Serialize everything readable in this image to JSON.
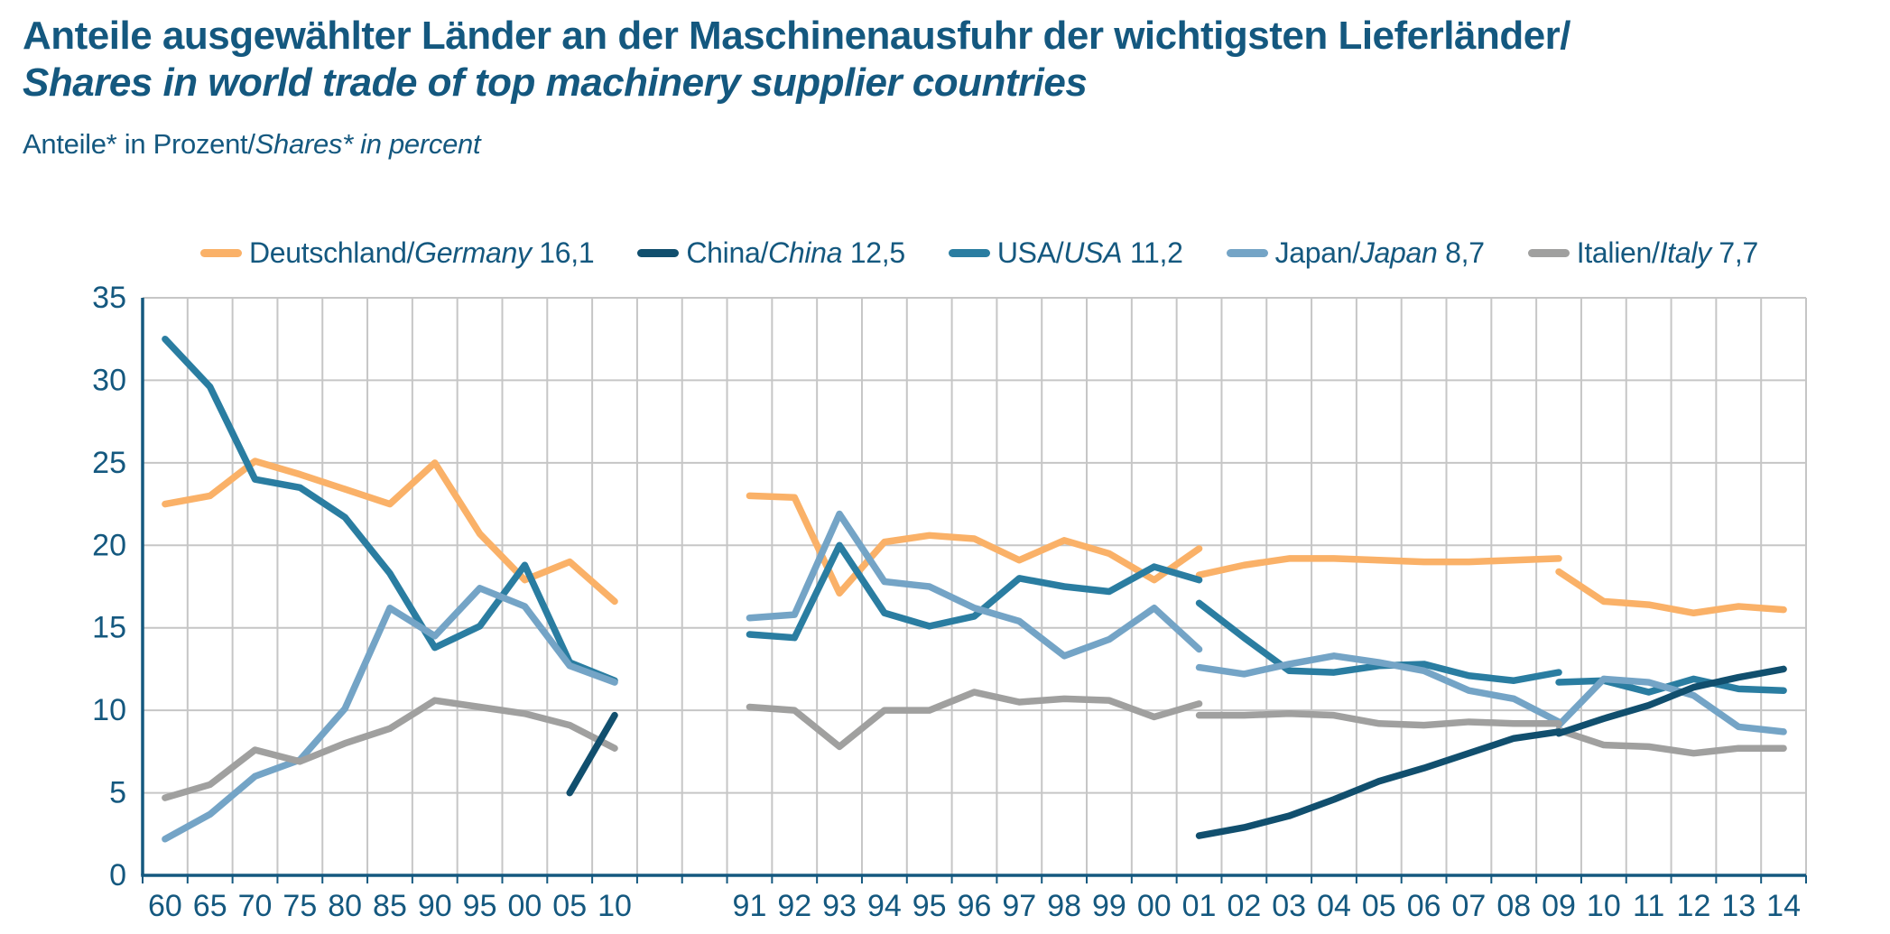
{
  "title": {
    "de": "Anteile ausgewählter Länder an der Maschinenausfuhr der wichtigsten Lieferländer/",
    "en": "Shares in world trade of top machinery supplier countries"
  },
  "subtitle": {
    "de": "Anteile* in Prozent/",
    "en": "Shares* in percent"
  },
  "colors": {
    "text_blue": "#14587F",
    "axis_blue": "#14587F",
    "gridline_gray": "#C6C6C6",
    "germany": "#FAB168",
    "china": "#114F6E",
    "usa": "#2A7DA1",
    "japan": "#74A4C6",
    "italy": "#A0A09F"
  },
  "chart_data": {
    "type": "line",
    "title": "Anteile ausgewählter Länder an der Maschinenausfuhr der wichtigsten Lieferländer / Shares in world trade of top machinery supplier countries",
    "ylabel": "Anteile* in Prozent / Shares* in percent",
    "ylim": [
      0,
      35
    ],
    "ytick_step": 5,
    "grid": "on",
    "legend_position": "top",
    "note": "Two x-axis sections: 5-year steps 1960-2010, then annual 1991-2014; series have statistical breaks (dual values) at 2001 and 2009",
    "y_ticks": [
      "0",
      "5",
      "10",
      "15",
      "20",
      "25",
      "30",
      "35"
    ],
    "x_ticks": [
      {
        "t": "60",
        "i": 0
      },
      {
        "t": "65",
        "i": 1
      },
      {
        "t": "70",
        "i": 2
      },
      {
        "t": "75",
        "i": 3
      },
      {
        "t": "80",
        "i": 4
      },
      {
        "t": "85",
        "i": 5
      },
      {
        "t": "90",
        "i": 6
      },
      {
        "t": "95",
        "i": 7
      },
      {
        "t": "00",
        "i": 8
      },
      {
        "t": "05",
        "i": 9
      },
      {
        "t": "10",
        "i": 10
      },
      {
        "t": "91",
        "i": 13
      },
      {
        "t": "92",
        "i": 14
      },
      {
        "t": "93",
        "i": 15
      },
      {
        "t": "94",
        "i": 16
      },
      {
        "t": "95",
        "i": 17
      },
      {
        "t": "96",
        "i": 18
      },
      {
        "t": "97",
        "i": 19
      },
      {
        "t": "98",
        "i": 20
      },
      {
        "t": "99",
        "i": 21
      },
      {
        "t": "00",
        "i": 22
      },
      {
        "t": "01",
        "i": 23
      },
      {
        "t": "02",
        "i": 24
      },
      {
        "t": "03",
        "i": 25
      },
      {
        "t": "04",
        "i": 26
      },
      {
        "t": "05",
        "i": 27
      },
      {
        "t": "06",
        "i": 28
      },
      {
        "t": "07",
        "i": 29
      },
      {
        "t": "08",
        "i": 30
      },
      {
        "t": "09",
        "i": 31
      },
      {
        "t": "10",
        "i": 32
      },
      {
        "t": "11",
        "i": 33
      },
      {
        "t": "12",
        "i": 34
      },
      {
        "t": "13",
        "i": 35
      },
      {
        "t": "14",
        "i": 36
      }
    ],
    "series": [
      {
        "key": "germany",
        "legend": {
          "de": "Deutschland/",
          "en": "Germany",
          "value": "16,1"
        },
        "color": "#FAB168",
        "segments": [
          {
            "start_index": 0,
            "x_labels": [
              "60",
              "65",
              "70",
              "75",
              "80",
              "85",
              "90",
              "95",
              "00",
              "05",
              "10"
            ],
            "values": [
              22.5,
              23.0,
              25.1,
              24.3,
              23.4,
              22.5,
              25.0,
              20.7,
              17.9,
              19.0,
              16.6
            ]
          },
          {
            "start_index": 13,
            "x_labels": [
              "91",
              "92",
              "93",
              "94",
              "95",
              "96",
              "97",
              "98",
              "99",
              "00",
              "01"
            ],
            "values": [
              23.0,
              22.9,
              17.1,
              20.2,
              20.6,
              20.4,
              19.1,
              20.3,
              19.5,
              17.9,
              19.8
            ]
          },
          {
            "start_index": 23,
            "x_labels": [
              "01",
              "02",
              "03",
              "04",
              "05",
              "06",
              "07",
              "08",
              "09"
            ],
            "values": [
              18.2,
              18.8,
              19.2,
              19.2,
              19.1,
              19.0,
              19.0,
              19.1,
              19.2
            ]
          },
          {
            "start_index": 31,
            "x_labels": [
              "09",
              "10",
              "11",
              "12",
              "13",
              "14"
            ],
            "values": [
              18.4,
              16.6,
              16.4,
              15.9,
              16.3,
              16.1
            ]
          }
        ]
      },
      {
        "key": "usa",
        "legend": {
          "de": "USA/",
          "en": "USA",
          "value": "11,2"
        },
        "color": "#2A7DA1",
        "segments": [
          {
            "start_index": 0,
            "x_labels": [
              "60",
              "65",
              "70",
              "75",
              "80",
              "85",
              "90",
              "95",
              "00",
              "05",
              "10"
            ],
            "values": [
              32.5,
              29.6,
              24.0,
              23.5,
              21.7,
              18.3,
              13.8,
              15.1,
              18.8,
              12.9,
              11.8
            ]
          },
          {
            "start_index": 13,
            "x_labels": [
              "91",
              "92",
              "93",
              "94",
              "95",
              "96",
              "97",
              "98",
              "99",
              "00",
              "01"
            ],
            "values": [
              14.6,
              14.4,
              20.0,
              15.9,
              15.1,
              15.7,
              18.0,
              17.5,
              17.2,
              18.7,
              17.9
            ]
          },
          {
            "start_index": 23,
            "x_labels": [
              "01",
              "02",
              "03",
              "04",
              "05",
              "06",
              "07",
              "08",
              "09"
            ],
            "values": [
              16.5,
              14.4,
              12.4,
              12.3,
              12.7,
              12.8,
              12.1,
              11.8,
              12.3
            ]
          },
          {
            "start_index": 31,
            "x_labels": [
              "09",
              "10",
              "11",
              "12",
              "13",
              "14"
            ],
            "values": [
              11.7,
              11.8,
              11.1,
              11.9,
              11.3,
              11.2
            ]
          }
        ]
      },
      {
        "key": "japan",
        "legend": {
          "de": "Japan/",
          "en": "Japan",
          "value": "8,7"
        },
        "color": "#74A4C6",
        "segments": [
          {
            "start_index": 0,
            "x_labels": [
              "60",
              "65",
              "70",
              "75",
              "80",
              "85",
              "90",
              "95",
              "00",
              "05",
              "10"
            ],
            "values": [
              2.2,
              3.7,
              6.0,
              7.0,
              10.1,
              16.2,
              14.5,
              17.4,
              16.3,
              12.7,
              11.7
            ]
          },
          {
            "start_index": 13,
            "x_labels": [
              "91",
              "92",
              "93",
              "94",
              "95",
              "96",
              "97",
              "98",
              "99",
              "00",
              "01"
            ],
            "values": [
              15.6,
              15.8,
              21.9,
              17.8,
              17.5,
              16.2,
              15.4,
              13.3,
              14.3,
              16.2,
              13.7
            ]
          },
          {
            "start_index": 23,
            "x_labels": [
              "01",
              "02",
              "03",
              "04",
              "05",
              "06",
              "07",
              "08",
              "09"
            ],
            "values": [
              12.6,
              12.2,
              12.8,
              13.3,
              12.9,
              12.4,
              11.2,
              10.7,
              9.3
            ]
          },
          {
            "start_index": 31,
            "x_labels": [
              "09",
              "10",
              "11",
              "12",
              "13",
              "14"
            ],
            "values": [
              9.1,
              11.9,
              11.7,
              10.9,
              9.0,
              8.7
            ]
          }
        ]
      },
      {
        "key": "italy",
        "legend": {
          "de": "Italien/",
          "en": "Italy",
          "value": "7,7"
        },
        "color": "#A0A09F",
        "segments": [
          {
            "start_index": 0,
            "x_labels": [
              "60",
              "65",
              "70",
              "75",
              "80",
              "85",
              "90",
              "95",
              "00",
              "05",
              "10"
            ],
            "values": [
              4.7,
              5.5,
              7.6,
              6.9,
              8.0,
              8.9,
              10.6,
              10.2,
              9.8,
              9.1,
              7.7
            ]
          },
          {
            "start_index": 13,
            "x_labels": [
              "91",
              "92",
              "93",
              "94",
              "95",
              "96",
              "97",
              "98",
              "99",
              "00",
              "01"
            ],
            "values": [
              10.2,
              10.0,
              7.8,
              10.0,
              10.0,
              11.1,
              10.5,
              10.7,
              10.6,
              9.6,
              10.4
            ]
          },
          {
            "start_index": 23,
            "x_labels": [
              "01",
              "02",
              "03",
              "04",
              "05",
              "06",
              "07",
              "08",
              "09"
            ],
            "values": [
              9.7,
              9.7,
              9.8,
              9.7,
              9.2,
              9.1,
              9.3,
              9.2,
              9.2
            ]
          },
          {
            "start_index": 31,
            "x_labels": [
              "09",
              "10",
              "11",
              "12",
              "13",
              "14"
            ],
            "values": [
              8.8,
              7.9,
              7.8,
              7.4,
              7.7,
              7.7
            ]
          }
        ]
      },
      {
        "key": "china",
        "legend": {
          "de": "China/",
          "en": "China",
          "value": "12,5"
        },
        "color": "#114F6E",
        "segments": [
          {
            "start_index": 9,
            "x_labels": [
              "05",
              "10"
            ],
            "values": [
              5.0,
              9.7
            ]
          },
          {
            "start_index": 23,
            "x_labels": [
              "01",
              "02",
              "03",
              "04",
              "05",
              "06",
              "07",
              "08",
              "09"
            ],
            "values": [
              2.4,
              2.9,
              3.6,
              4.6,
              5.7,
              6.5,
              7.4,
              8.3,
              8.7
            ]
          },
          {
            "start_index": 31,
            "x_labels": [
              "09",
              "10",
              "11",
              "12",
              "13",
              "14"
            ],
            "values": [
              8.6,
              9.5,
              10.3,
              11.4,
              12.0,
              12.5
            ]
          }
        ]
      }
    ],
    "legend_order": [
      "germany",
      "china",
      "usa",
      "japan",
      "italy"
    ]
  }
}
